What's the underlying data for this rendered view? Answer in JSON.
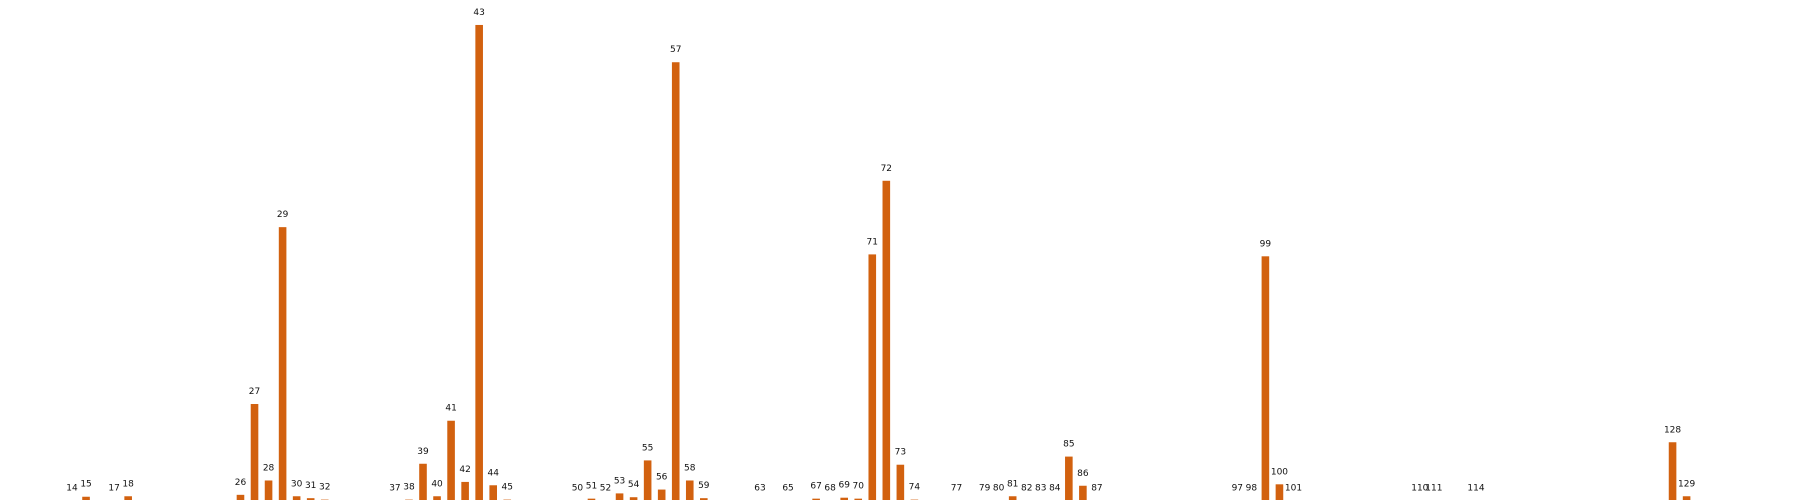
{
  "chart_data": {
    "type": "bar",
    "color": "#d2610f",
    "title": "",
    "xlabel": "",
    "ylabel": "",
    "grid": false,
    "legend": "none",
    "ylim": [
      0,
      1.0
    ],
    "categories": [
      "14",
      "15",
      "17",
      "18",
      "26",
      "27",
      "28",
      "29",
      "30",
      "31",
      "32",
      "37",
      "38",
      "39",
      "40",
      "41",
      "42",
      "43",
      "44",
      "45",
      "50",
      "51",
      "52",
      "53",
      "54",
      "55",
      "56",
      "57",
      "58",
      "59",
      "63",
      "65",
      "67",
      "68",
      "69",
      "70",
      "71",
      "72",
      "73",
      "74",
      "77",
      "79",
      "80",
      "81",
      "82",
      "83",
      "84",
      "85",
      "86",
      "87",
      "97",
      "98",
      "99",
      "100",
      "101",
      "110",
      "111",
      "114",
      "128",
      "129"
    ],
    "values": [
      0.003,
      0.011,
      0.003,
      0.012,
      0.015,
      0.205,
      0.045,
      0.575,
      0.012,
      0.008,
      0.005,
      0.0,
      0.005,
      0.08,
      0.012,
      0.17,
      0.042,
      0.998,
      0.035,
      0.005,
      0.003,
      0.007,
      0.0,
      0.018,
      0.01,
      0.087,
      0.026,
      0.92,
      0.045,
      0.008,
      0.0,
      0.003,
      0.007,
      0.003,
      0.009,
      0.007,
      0.518,
      0.672,
      0.078,
      0.005,
      0.0,
      0.0,
      0.0,
      0.012,
      0.003,
      0.003,
      0.0,
      0.095,
      0.034,
      0.003,
      0.003,
      0.003,
      0.514,
      0.037,
      0.003,
      0.0,
      0.0,
      0.003,
      0.125,
      0.012
    ]
  }
}
